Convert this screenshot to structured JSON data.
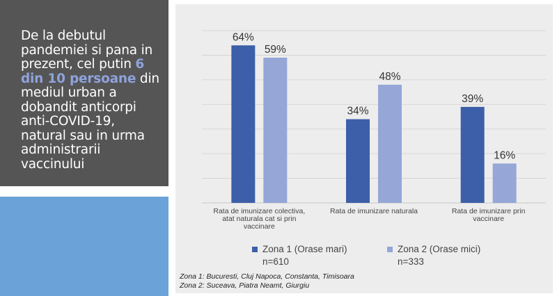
{
  "colors": {
    "zona1": "#3d5fa9",
    "zona2": "#95a6d7",
    "accent_blue_box": "#6ba3d8",
    "grid": "#d0d0d0"
  },
  "sidebar": {
    "headline_part1": "De la debutul pandemiei si pana in prezent, cel putin ",
    "headline_highlight": "6 din 10 persoane",
    "headline_part2": " din mediul urban a dobandit anticorpi anti-COVID-19, natural sau in urma administrarii vaccinului"
  },
  "legend": {
    "zona1_label": "Zona 1 (Orase mari)",
    "zona1_n": "n=610",
    "zona2_label": "Zona 2 (Orase mici)",
    "zona2_n": "n=333"
  },
  "notes": {
    "line1": "Zona 1: Bucuresti, Cluj Napoca, Constanta, Timisoara",
    "line2": "Zona 2: Suceava, Piatra Neamt, Giurgiu"
  },
  "chart_data": {
    "type": "bar",
    "categories": [
      [
        "Rata de imunizare colectiva,",
        "atat naturala cat si prin",
        "vaccinare"
      ],
      [
        "Rata de imunizare naturala"
      ],
      [
        "Rata de imunizare prin",
        "vaccinare"
      ]
    ],
    "series": [
      {
        "name": "Zona 1 (Orase mari)",
        "values": [
          64,
          34,
          39
        ]
      },
      {
        "name": "Zona 2 (Orase mici)",
        "values": [
          59,
          48,
          16
        ]
      }
    ],
    "value_suffix": "%",
    "ylim": [
      0,
      70
    ],
    "grid": true,
    "legend": "bottom",
    "title": "",
    "xlabel": "",
    "ylabel": ""
  }
}
